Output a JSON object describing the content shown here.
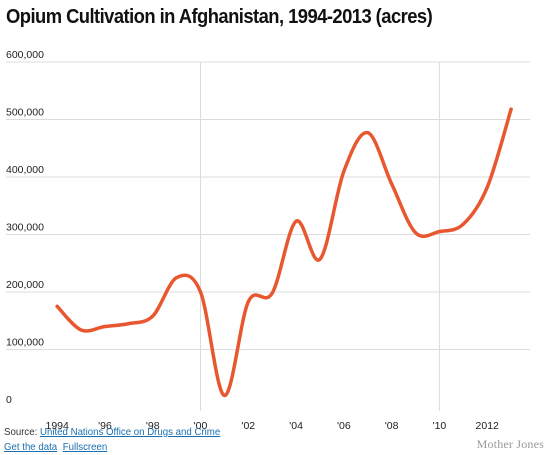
{
  "footer": {
    "source_prefix": "Source: ",
    "source_link": "United Nations Office on Drugs and Crime",
    "get_data": "Get the data",
    "fullscreen": "Fullscreen",
    "brand": "Mother Jones"
  },
  "colors": {
    "line": "#e8572f",
    "grid": "#dcdcdc",
    "link": "#1a6fb0"
  },
  "chart_data": {
    "type": "line",
    "title": "Opium Cultivation in Afghanistan, 1994-2013 (acres)",
    "xlabel": "",
    "ylabel": "",
    "ylim": [
      0,
      600000
    ],
    "yticks": [
      0,
      100000,
      200000,
      300000,
      400000,
      500000,
      600000
    ],
    "ytick_labels": [
      "0",
      "100,000",
      "200,000",
      "300,000",
      "400,000",
      "500,000",
      "600,000"
    ],
    "xlim": [
      1993.7,
      2014.0
    ],
    "xticks": [
      1994,
      1996,
      1998,
      2000,
      2002,
      2004,
      2006,
      2008,
      2010,
      2012
    ],
    "xtick_labels": [
      "1994",
      "'96",
      "'98",
      "'00",
      "'02",
      "'04",
      "'06",
      "'08",
      "'10",
      "2012"
    ],
    "vertical_gridlines": [
      2000,
      2010
    ],
    "grid": true,
    "series": [
      {
        "x": [
          1994,
          1995,
          1996,
          1997,
          1998,
          1999,
          2000,
          2001,
          2002,
          2003,
          2004,
          2005,
          2006,
          2007,
          2008,
          2009,
          2010,
          2011,
          2012,
          2013
        ],
        "values": [
          175000,
          134000,
          140000,
          145000,
          158000,
          225000,
          200000,
          20000,
          183000,
          198000,
          323000,
          257000,
          410000,
          477000,
          388000,
          303000,
          305000,
          318000,
          382000,
          518000
        ]
      }
    ]
  }
}
